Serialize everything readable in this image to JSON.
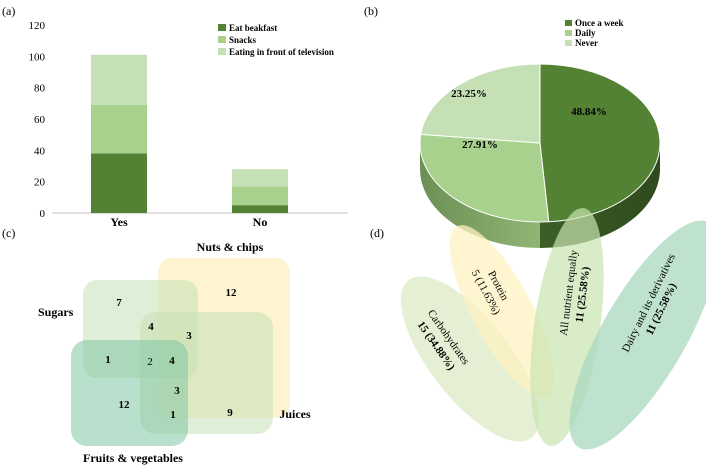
{
  "panels": {
    "a": "(a)",
    "b": "(b)",
    "c": "(c)",
    "d": "(d)"
  },
  "colors": {
    "dark_green": "#548235",
    "mid_green": "#a9d18e",
    "light_green": "#c5e0b4",
    "venn_yellow": "#ffe699",
    "venn_green_light": "#c5e0b4",
    "venn_teal": "#7fc6a4",
    "venn_olive": "#d6e6a6",
    "ellipse_pale_green": "#dce9c6",
    "ellipse_pale_yellow": "#fff2c2",
    "ellipse_light_green": "#c9e4b0",
    "ellipse_teal": "#a9d8bf"
  },
  "chart_data": [
    {
      "id": "a",
      "type": "bar",
      "stacked": true,
      "categories": [
        "Yes",
        "No"
      ],
      "ylim": [
        0,
        120
      ],
      "yticks": [
        0,
        20,
        40,
        60,
        80,
        100,
        120
      ],
      "grid": false,
      "legend_position": "top-right",
      "series": [
        {
          "name": "Eat beakfast",
          "values": [
            38,
            5
          ],
          "color": "#548235"
        },
        {
          "name": "Snacks",
          "values": [
            31,
            12
          ],
          "color": "#a9d18e"
        },
        {
          "name": "Eating in front of television",
          "values": [
            32,
            11
          ],
          "color": "#c5e0b4"
        }
      ]
    },
    {
      "id": "b",
      "type": "pie",
      "style": "3d",
      "legend_position": "top-right",
      "slices": [
        {
          "name": "Once a week",
          "value": 48.84,
          "label": "48.84%",
          "color": "#548235"
        },
        {
          "name": "Daily",
          "value": 27.91,
          "label": "27.91%",
          "color": "#a9d18e"
        },
        {
          "name": "Never",
          "value": 23.25,
          "label": "23.25%",
          "color": "#c5e0b4"
        }
      ]
    }
  ],
  "venn": {
    "sets": {
      "nuts": "Nuts & chips",
      "sugars": "Sugars",
      "juices": "Juices",
      "fruits": "Fruits & vegetables"
    },
    "counts": {
      "nuts_only": "12",
      "sugars_only": "7",
      "sugars_nuts": "4",
      "sugars_nuts_juices": "3",
      "sugars_fruits": "1",
      "sugars_fruits_juices": "2",
      "all_four": "4",
      "fruits_juices_nuts": "3",
      "fruits_only": "12",
      "fruits_juices": "1",
      "juices_only": "9"
    }
  },
  "ellipses": {
    "carbohydrates": {
      "name": "Carbohydrates",
      "value": "15 (34.88%)"
    },
    "protein": {
      "name": "Protein",
      "value": "5 (11.63%)"
    },
    "all_equal": {
      "name": "All nutrient equally",
      "value": "11 (25.58%)"
    },
    "dairy": {
      "name": "Dairy and its derivatives",
      "value": "11 (25.58%)"
    }
  }
}
